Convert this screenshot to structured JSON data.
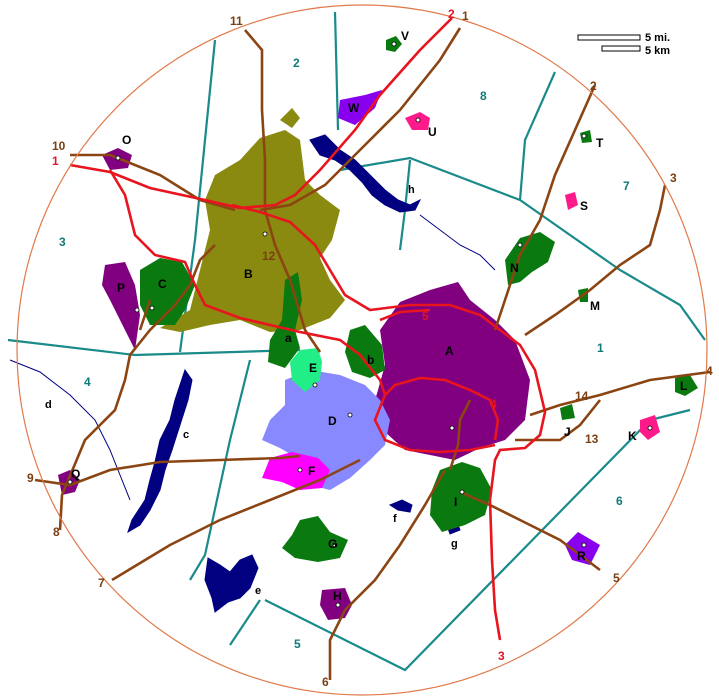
{
  "colors": {
    "boundary_circle": "#e07a4a",
    "zone_line": "#1a8a8a",
    "road": "#8b4513",
    "highway": "#e8141e",
    "water": "#000080",
    "area_olive": "#8a8a10",
    "area_purple": "#800080",
    "area_green": "#0a7a10",
    "area_lightblue": "#8888ff",
    "area_magenta": "#ff00ff",
    "area_lightgreen": "#22ee88",
    "area_violet": "#8800ee",
    "area_hotpink": "#ff1a8c"
  },
  "scale": {
    "miles": "5 mi.",
    "km": "5 km"
  },
  "areas": [
    {
      "id": "A",
      "label": "A"
    },
    {
      "id": "B",
      "label": "B"
    },
    {
      "id": "C",
      "label": "C"
    },
    {
      "id": "D",
      "label": "D"
    },
    {
      "id": "E",
      "label": "E"
    },
    {
      "id": "F",
      "label": "F"
    },
    {
      "id": "G",
      "label": "G"
    },
    {
      "id": "H",
      "label": "H"
    },
    {
      "id": "I",
      "label": "I"
    },
    {
      "id": "J",
      "label": "J"
    },
    {
      "id": "K",
      "label": "K"
    },
    {
      "id": "L",
      "label": "L"
    },
    {
      "id": "M",
      "label": "M"
    },
    {
      "id": "N",
      "label": "N"
    },
    {
      "id": "O",
      "label": "O"
    },
    {
      "id": "P",
      "label": "P"
    },
    {
      "id": "Q",
      "label": "Q"
    },
    {
      "id": "R",
      "label": "R"
    },
    {
      "id": "S",
      "label": "S"
    },
    {
      "id": "T",
      "label": "T"
    },
    {
      "id": "U",
      "label": "U"
    },
    {
      "id": "V",
      "label": "V"
    },
    {
      "id": "W",
      "label": "W"
    },
    {
      "id": "a",
      "label": "a"
    },
    {
      "id": "b",
      "label": "b"
    }
  ],
  "water_labels": [
    "c",
    "d",
    "e",
    "f",
    "g",
    "h"
  ],
  "zones": [
    "1",
    "2",
    "3",
    "4",
    "5",
    "6",
    "7",
    "8"
  ],
  "routes": [
    "1",
    "2",
    "3",
    "4",
    "5",
    "6",
    "7",
    "8",
    "9",
    "10",
    "11",
    "12",
    "13",
    "14"
  ],
  "highways": [
    "1",
    "2",
    "3",
    "4",
    "5"
  ]
}
